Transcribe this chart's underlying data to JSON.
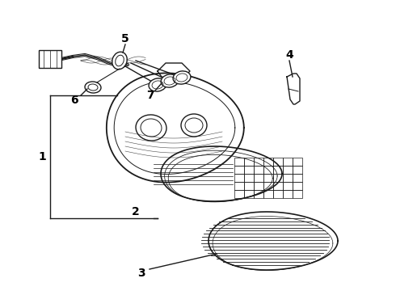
{
  "bg_color": "#ffffff",
  "line_color": "#1a1a1a",
  "label_color": "#000000",
  "label_fontsize": 10,
  "figsize": [
    4.9,
    3.6
  ],
  "dpi": 100
}
